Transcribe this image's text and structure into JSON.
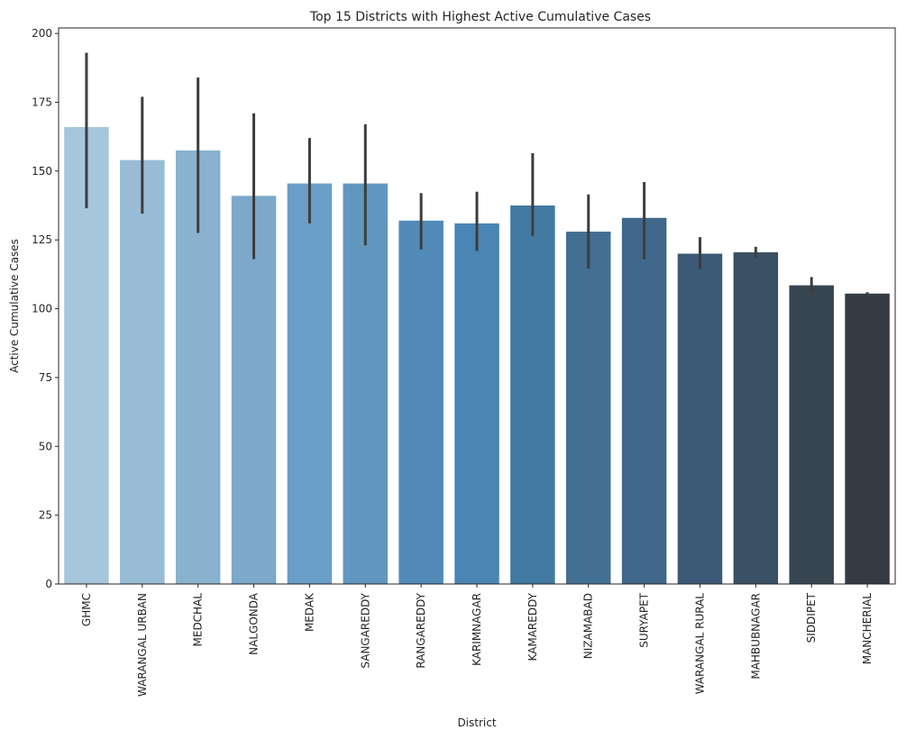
{
  "chart_data": {
    "type": "bar",
    "title": "Top 15 Districts with Highest Active Cumulative Cases",
    "xlabel": "District",
    "ylabel": "Active Cumulative Cases",
    "ylim": [
      0,
      202
    ],
    "yticks": [
      0,
      25,
      50,
      75,
      100,
      125,
      150,
      175,
      200
    ],
    "grid": false,
    "categories": [
      "GHMC",
      "WARANGAL URBAN",
      "MEDCHAL",
      "NALGONDA",
      "MEDAK",
      "SANGAREDDY",
      "RANGAREDDY",
      "KARIMNAGAR",
      "KAMAREDDY",
      "NIZAMABAD",
      "SURYAPET",
      "WARANGAL RURAL",
      "MAHBUBNAGAR",
      "SIDDIPET",
      "MANCHERIAL"
    ],
    "values": [
      166,
      154,
      157.5,
      141,
      145.5,
      145.5,
      132,
      131,
      137.5,
      128,
      133,
      120,
      120.5,
      108.5,
      105.5
    ],
    "error_low": [
      136.5,
      134.5,
      127.5,
      118,
      131,
      123,
      121.5,
      121,
      126.5,
      114.5,
      118,
      114.5,
      118.5,
      105.5,
      105
    ],
    "error_high": [
      193,
      177,
      184,
      171,
      162,
      167,
      142,
      142.5,
      156.5,
      141.5,
      146,
      126,
      122.5,
      111.5,
      106
    ],
    "colors": [
      "#a6c6db",
      "#99bcd6",
      "#8ab2cf",
      "#7ca8ca",
      "#6b9ec6",
      "#6197bf",
      "#528ab9",
      "#4985b5",
      "#427aa1",
      "#436f93",
      "#40678a",
      "#3c5a78",
      "#3a5064",
      "#374550",
      "#343b43"
    ]
  }
}
